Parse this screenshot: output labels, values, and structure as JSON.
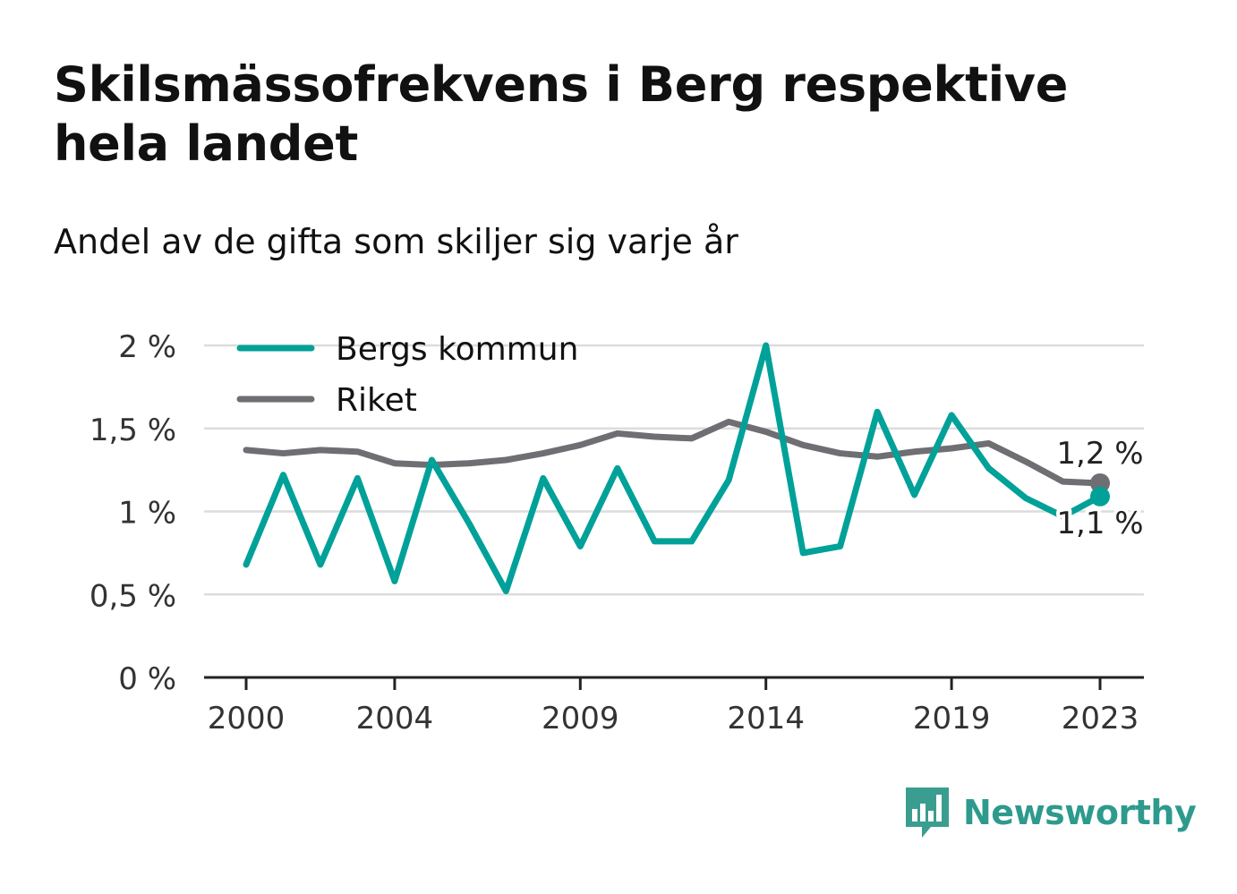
{
  "title": "Skilsmässofrekvens i Berg respektive hela landet",
  "subtitle": "Andel av de gifta som skiljer sig varje år",
  "brand": {
    "name": "Newsworthy"
  },
  "chart_data": {
    "type": "line",
    "title": "Skilsmässofrekvens i Berg respektive hela landet",
    "subtitle": "Andel av de gifta som skiljer sig varje år",
    "xlabel": "",
    "ylabel": "",
    "x": [
      2000,
      2001,
      2002,
      2003,
      2004,
      2005,
      2006,
      2007,
      2008,
      2009,
      2010,
      2011,
      2012,
      2013,
      2014,
      2015,
      2016,
      2017,
      2018,
      2019,
      2020,
      2021,
      2022,
      2023
    ],
    "x_ticks": [
      "2000",
      "2004",
      "2009",
      "2014",
      "2019",
      "2023"
    ],
    "x_tick_values": [
      2000,
      2004,
      2009,
      2014,
      2019,
      2023
    ],
    "y_ticks": [
      "0 %",
      "0,5 %",
      "1 %",
      "1,5 %",
      "2 %"
    ],
    "y_tick_values": [
      0,
      0.5,
      1,
      1.5,
      2
    ],
    "ylim": [
      0,
      2
    ],
    "grid": true,
    "legend_position": "top-left",
    "series": [
      {
        "name": "Bergs kommun",
        "color": "#00a198",
        "values": [
          0.68,
          1.22,
          0.68,
          1.2,
          0.58,
          1.31,
          0.93,
          0.52,
          1.2,
          0.79,
          1.26,
          0.82,
          0.82,
          1.19,
          2.0,
          0.75,
          0.79,
          1.6,
          1.1,
          1.58,
          1.26,
          1.08,
          0.97,
          1.09
        ],
        "end_label": "1,1 %"
      },
      {
        "name": "Riket",
        "color": "#6e6e73",
        "values": [
          1.37,
          1.35,
          1.37,
          1.36,
          1.29,
          1.28,
          1.29,
          1.31,
          1.35,
          1.4,
          1.47,
          1.45,
          1.44,
          1.54,
          1.48,
          1.4,
          1.35,
          1.33,
          1.36,
          1.38,
          1.41,
          1.3,
          1.18,
          1.17
        ],
        "end_label": "1,2 %"
      }
    ]
  }
}
